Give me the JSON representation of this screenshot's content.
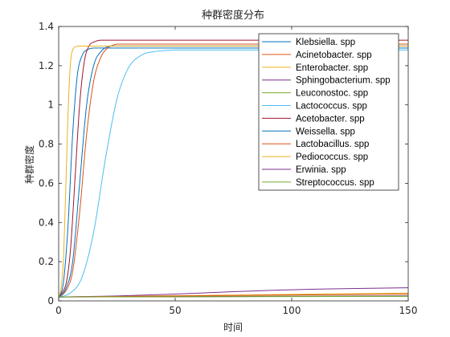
{
  "chart_data": {
    "type": "line",
    "title": "种群密度分布",
    "xlabel": "时间",
    "ylabel": "种群密度",
    "xlim": [
      0,
      150
    ],
    "ylim": [
      0,
      1.4
    ],
    "xticks": [
      "0",
      "50",
      "100",
      "150"
    ],
    "yticks": [
      "0",
      "0.2",
      "0.4",
      "0.6",
      "0.8",
      "1",
      "1.2",
      "1.4"
    ],
    "grid": false,
    "legend_position": "top-right",
    "series": [
      {
        "name": "Klebsiella. spp",
        "color": "#0072BD",
        "x": [
          0,
          2,
          4,
          6,
          8,
          10,
          12,
          15,
          20,
          30,
          50,
          100,
          150
        ],
        "y": [
          0.02,
          0.09,
          0.38,
          0.85,
          1.15,
          1.25,
          1.28,
          1.29,
          1.29,
          1.29,
          1.29,
          1.29,
          1.29
        ]
      },
      {
        "name": "Acinetobacter. spp",
        "color": "#D95319",
        "x": [
          0,
          3,
          6,
          9,
          12,
          15,
          18,
          21,
          25,
          30,
          50,
          100,
          150
        ],
        "y": [
          0.02,
          0.05,
          0.15,
          0.45,
          0.85,
          1.12,
          1.24,
          1.29,
          1.31,
          1.31,
          1.31,
          1.31,
          1.31
        ]
      },
      {
        "name": "Enterobacter. spp",
        "color": "#EDB120",
        "x": [
          0,
          150
        ],
        "y": [
          0.02,
          0.04
        ]
      },
      {
        "name": "Sphingobacterium. spp",
        "color": "#7E2F8E",
        "x": [
          0,
          25,
          50,
          75,
          100,
          125,
          150
        ],
        "y": [
          0.02,
          0.025,
          0.035,
          0.047,
          0.057,
          0.063,
          0.067
        ]
      },
      {
        "name": "Leuconostoc. spp",
        "color": "#77AC30",
        "x": [
          0,
          50,
          100,
          150
        ],
        "y": [
          0.02,
          0.022,
          0.024,
          0.026
        ]
      },
      {
        "name": "Lactococcus. spp",
        "color": "#4DBEEE",
        "x": [
          0,
          5,
          10,
          15,
          20,
          25,
          30,
          35,
          40,
          50,
          60,
          100,
          150
        ],
        "y": [
          0.02,
          0.04,
          0.12,
          0.35,
          0.72,
          1.03,
          1.19,
          1.25,
          1.27,
          1.28,
          1.28,
          1.28,
          1.28
        ]
      },
      {
        "name": "Acetobacter. spp",
        "color": "#A2142F",
        "x": [
          0,
          3,
          5,
          7,
          9,
          11,
          13,
          15,
          18,
          25,
          50,
          100,
          150
        ],
        "y": [
          0.02,
          0.08,
          0.25,
          0.62,
          1.0,
          1.22,
          1.3,
          1.32,
          1.33,
          1.33,
          1.33,
          1.33,
          1.33
        ]
      },
      {
        "name": "Weissella. spp",
        "color": "#0072BD",
        "x": [
          0,
          3,
          6,
          9,
          12,
          15,
          18,
          22,
          30,
          50,
          100,
          150
        ],
        "y": [
          0.02,
          0.06,
          0.2,
          0.6,
          1.0,
          1.2,
          1.27,
          1.3,
          1.3,
          1.3,
          1.3,
          1.3
        ]
      },
      {
        "name": "Lactobacillus. spp",
        "color": "#D95319",
        "x": [
          0,
          50,
          100,
          150
        ],
        "y": [
          0.02,
          0.025,
          0.03,
          0.035
        ]
      },
      {
        "name": "Pediococcus. spp",
        "color": "#EDB120",
        "x": [
          0,
          1,
          2,
          3,
          4,
          5,
          6,
          8,
          10,
          20,
          50,
          100,
          150
        ],
        "y": [
          0.02,
          0.06,
          0.2,
          0.55,
          0.95,
          1.2,
          1.28,
          1.3,
          1.3,
          1.3,
          1.3,
          1.3,
          1.3
        ]
      },
      {
        "name": "Erwinia. spp",
        "color": "#7E2F8E",
        "x": [
          0,
          50,
          100,
          150
        ],
        "y": [
          0.02,
          0.021,
          0.023,
          0.025
        ]
      },
      {
        "name": "Streptococcus. spp",
        "color": "#77AC30",
        "x": [
          0,
          50,
          100,
          150
        ],
        "y": [
          0.02,
          0.021,
          0.022,
          0.023
        ]
      }
    ]
  }
}
